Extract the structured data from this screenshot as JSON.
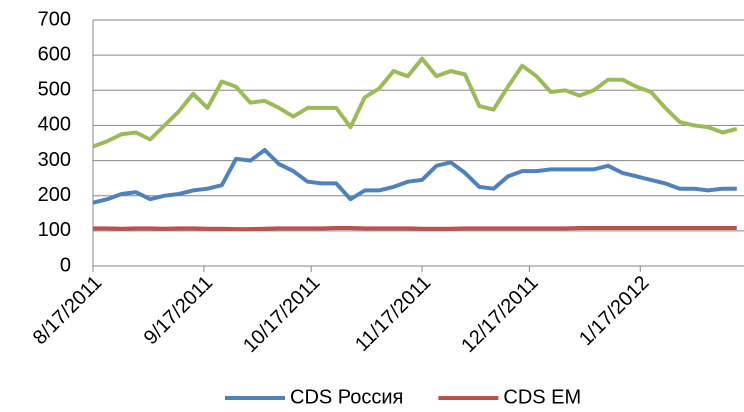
{
  "chart_data": {
    "type": "line",
    "x": [
      "8/17/2011",
      "8/21/2011",
      "8/25/2011",
      "8/29/2011",
      "9/2/2011",
      "9/6/2011",
      "9/10/2011",
      "9/14/2011",
      "9/18/2011",
      "9/22/2011",
      "9/26/2011",
      "9/30/2011",
      "10/4/2011",
      "10/8/2011",
      "10/12/2011",
      "10/16/2011",
      "10/20/2011",
      "10/24/2011",
      "10/28/2011",
      "11/1/2011",
      "11/5/2011",
      "11/9/2011",
      "11/13/2011",
      "11/17/2011",
      "11/21/2011",
      "11/25/2011",
      "11/29/2011",
      "12/3/2011",
      "12/7/2011",
      "12/11/2011",
      "12/15/2011",
      "12/19/2011",
      "12/23/2011",
      "12/27/2011",
      "12/31/2011",
      "1/4/2012",
      "1/8/2012",
      "1/12/2012",
      "1/16/2012",
      "1/20/2012",
      "1/24/2012",
      "1/28/2012",
      "2/1/2012",
      "2/5/2012",
      "2/9/2012",
      "2/13/2012"
    ],
    "series": [
      {
        "color": "#9bbb59",
        "values": [
          340,
          355,
          375,
          380,
          360,
          400,
          440,
          490,
          450,
          525,
          510,
          465,
          470,
          450,
          425,
          450,
          450,
          450,
          395,
          480,
          505,
          555,
          540,
          590,
          540,
          555,
          545,
          455,
          445,
          510,
          570,
          540,
          495,
          500,
          485,
          500,
          530,
          530,
          510,
          495,
          450,
          410,
          400,
          395,
          380,
          390
        ]
      },
      {
        "name": "CDS Россия",
        "color": "#4f81bd",
        "values": [
          180,
          190,
          205,
          210,
          190,
          200,
          205,
          215,
          220,
          230,
          305,
          300,
          330,
          290,
          270,
          240,
          235,
          235,
          190,
          215,
          215,
          225,
          240,
          245,
          285,
          295,
          265,
          225,
          220,
          255,
          270,
          270,
          275,
          275,
          275,
          275,
          285,
          265,
          255,
          245,
          235,
          220,
          220,
          215,
          220,
          220
        ]
      },
      {
        "name": "CDS EM",
        "color": "#c0504d",
        "values": [
          107,
          107,
          106,
          107,
          107,
          106,
          107,
          107,
          106,
          106,
          105,
          105,
          106,
          107,
          107,
          107,
          107,
          108,
          108,
          107,
          107,
          107,
          107,
          106,
          106,
          106,
          107,
          107,
          107,
          107,
          107,
          107,
          107,
          107,
          108,
          108,
          108,
          108,
          108,
          108,
          108,
          108,
          108,
          108,
          108,
          108
        ]
      }
    ],
    "xlim": [
      "8/17/2011",
      "2/15/2012"
    ],
    "xticks": [
      "8/17/2011",
      "9/17/2011",
      "10/17/2011",
      "11/17/2011",
      "12/17/2011",
      "1/17/2012"
    ],
    "ylim": [
      0,
      700
    ],
    "yticks": [
      0,
      100,
      200,
      300,
      400,
      500,
      600,
      700
    ],
    "grid": true
  }
}
